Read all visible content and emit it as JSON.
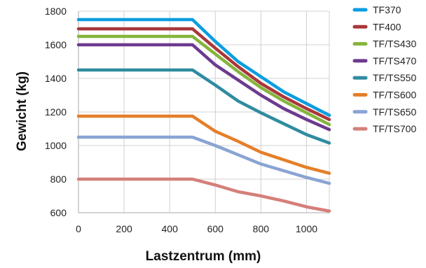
{
  "chart_data": {
    "type": "line",
    "title": "",
    "xlabel": "Lastzentrum (mm)",
    "ylabel": "Gewicht (kg)",
    "xlim": [
      0,
      1100
    ],
    "ylim": [
      600,
      1800
    ],
    "x_ticks": [
      0,
      200,
      400,
      600,
      800,
      1000
    ],
    "y_ticks": [
      600,
      800,
      1000,
      1200,
      1400,
      1600,
      1800
    ],
    "grid": true,
    "legend_position": "right",
    "x": [
      0,
      500,
      600,
      700,
      800,
      900,
      1000,
      1100
    ],
    "series": [
      {
        "name": "TF370",
        "color": "#0b9de0",
        "values": [
          1750,
          1750,
          1620,
          1500,
          1410,
          1320,
          1250,
          1180
        ]
      },
      {
        "name": "TF400",
        "color": "#a9373a",
        "values": [
          1695,
          1695,
          1580,
          1470,
          1370,
          1290,
          1220,
          1155
        ]
      },
      {
        "name": "TF/TS430",
        "color": "#86b43d",
        "values": [
          1650,
          1650,
          1545,
          1440,
          1345,
          1265,
          1195,
          1125
        ]
      },
      {
        "name": "TF/TS470",
        "color": "#6d3a8e",
        "values": [
          1600,
          1600,
          1480,
          1390,
          1300,
          1220,
          1155,
          1095
        ]
      },
      {
        "name": "TF/TS550",
        "color": "#2f8ca0",
        "values": [
          1450,
          1450,
          1360,
          1265,
          1195,
          1130,
          1065,
          1015
        ]
      },
      {
        "name": "TF/TS600",
        "color": "#e57f29",
        "values": [
          1175,
          1175,
          1085,
          1025,
          960,
          915,
          870,
          835
        ]
      },
      {
        "name": "TF/TS650",
        "color": "#8aa4d3",
        "values": [
          1050,
          1050,
          1000,
          945,
          890,
          850,
          810,
          775
        ]
      },
      {
        "name": "TF/TS700",
        "color": "#d57f7a",
        "values": [
          800,
          800,
          765,
          725,
          700,
          670,
          635,
          610
        ]
      }
    ]
  }
}
